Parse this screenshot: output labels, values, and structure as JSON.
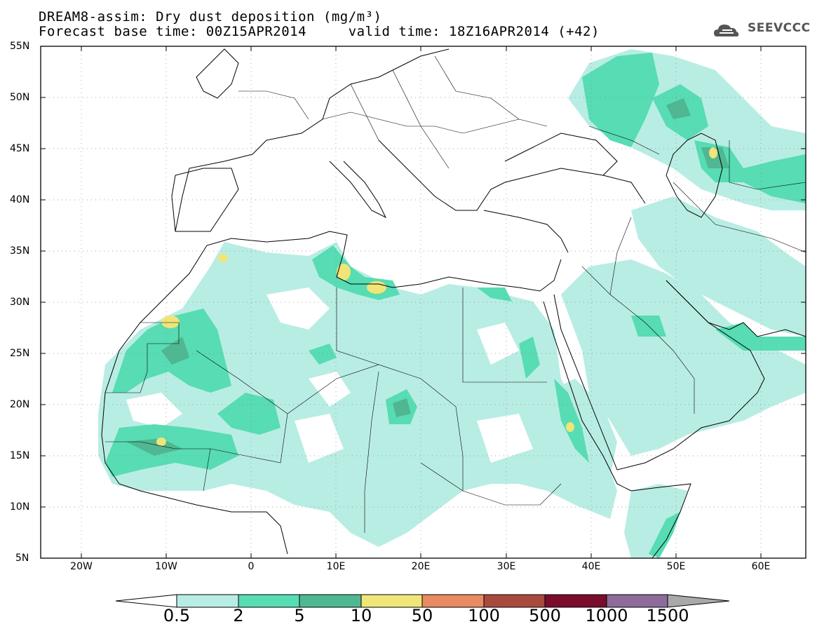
{
  "title": {
    "line1": "DREAM8-assim: Dry dust deposition (mg/m³)",
    "line2": "Forecast base time: 00Z15APR2014     valid time: 18Z16APR2014 (+42)"
  },
  "logo": {
    "text": "SEEVCCC",
    "icon": "cloud-icon",
    "color": "#555555"
  },
  "map": {
    "lat_labels": [
      "55N",
      "50N",
      "45N",
      "40N",
      "35N",
      "30N",
      "25N",
      "20N",
      "15N",
      "10N",
      "5N"
    ],
    "lon_labels": [
      "20W",
      "10W",
      "0",
      "10E",
      "20E",
      "30E",
      "40E",
      "50E",
      "60E"
    ],
    "lat_range": [
      5,
      55
    ],
    "lon_range": [
      -25,
      65
    ],
    "grid": "dotted"
  },
  "colorbar": {
    "labels": [
      "0.5",
      "2",
      "5",
      "10",
      "50",
      "100",
      "500",
      "1000",
      "1500"
    ],
    "colors": [
      "#ffffff",
      "#b8ede4",
      "#57dcb3",
      "#4fb791",
      "#f0e578",
      "#e98b62",
      "#a84b3e",
      "#7a0d2b",
      "#8d6b9b",
      "#a9a9a9"
    ]
  }
}
